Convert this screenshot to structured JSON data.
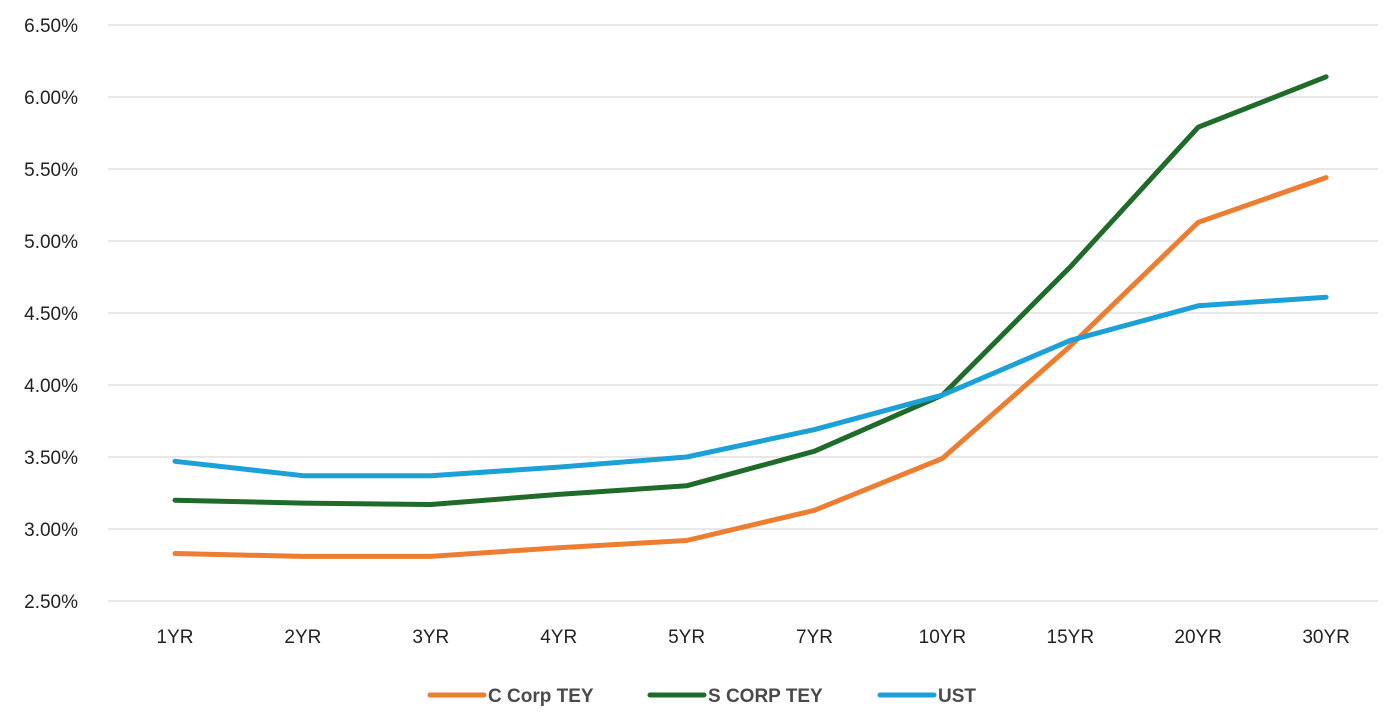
{
  "chart_data": {
    "type": "line",
    "title": "",
    "xlabel": "",
    "ylabel": "",
    "categories": [
      "1YR",
      "2YR",
      "3YR",
      "4YR",
      "5YR",
      "7YR",
      "10YR",
      "15YR",
      "20YR",
      "30YR"
    ],
    "ylim": [
      2.5,
      6.5
    ],
    "yticks": [
      2.5,
      3.0,
      3.5,
      4.0,
      4.5,
      5.0,
      5.5,
      6.0,
      6.5
    ],
    "ytick_labels": [
      "2.50%",
      "3.00%",
      "3.50%",
      "4.00%",
      "4.50%",
      "5.00%",
      "5.50%",
      "6.00%",
      "6.50%"
    ],
    "grid": true,
    "legend_position": "bottom-center",
    "series": [
      {
        "name": "C Corp TEY",
        "color": "#ED7D31",
        "values": [
          2.83,
          2.81,
          2.81,
          2.87,
          2.92,
          3.13,
          3.49,
          4.27,
          5.13,
          5.44
        ]
      },
      {
        "name": "S CORP TEY",
        "color": "#1E6B2A",
        "values": [
          3.2,
          3.18,
          3.17,
          3.24,
          3.3,
          3.54,
          3.93,
          4.82,
          5.79,
          6.14
        ]
      },
      {
        "name": "UST",
        "color": "#1CA0D8",
        "values": [
          3.47,
          3.37,
          3.37,
          3.43,
          3.5,
          3.69,
          3.93,
          4.31,
          4.55,
          4.61
        ]
      }
    ]
  }
}
